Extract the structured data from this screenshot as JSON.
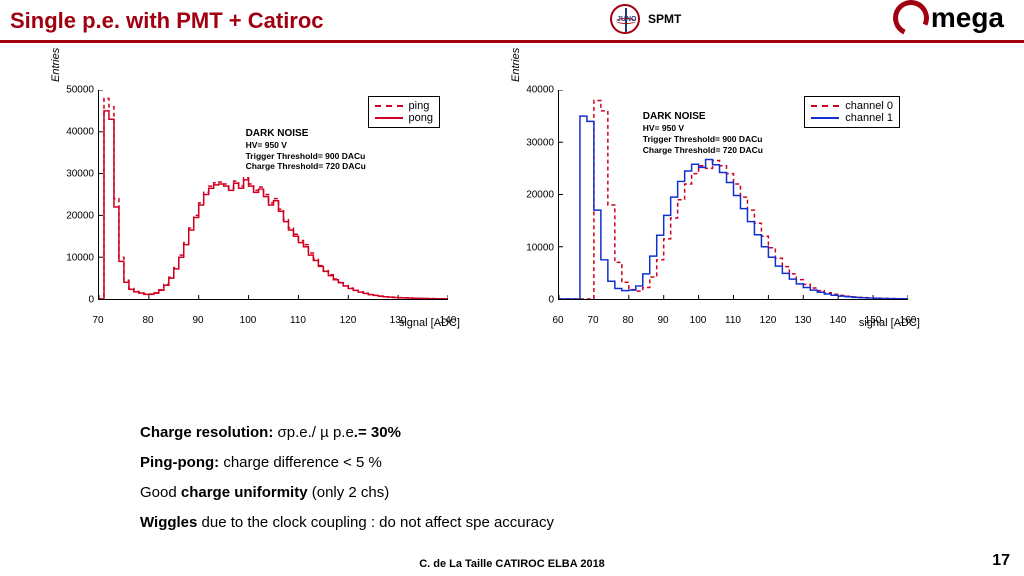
{
  "header": {
    "title": "Single p.e. with PMT + Catiroc",
    "spmt_label": "SPMT",
    "omega_label": "mega",
    "accent_color": "#a00010"
  },
  "chart_left": {
    "type": "histogram-step",
    "y_label": "Entries",
    "x_label": "signal [ADC]",
    "xlim": [
      70,
      140
    ],
    "ylim": [
      0,
      50000
    ],
    "xtick_step": 10,
    "ytick_step": 10000,
    "background_color": "#ffffff",
    "axis_color": "#000000",
    "legend": [
      {
        "label": "ping",
        "color": "#d00020",
        "dash": true
      },
      {
        "label": "pong",
        "color": "#d00020",
        "dash": false
      }
    ],
    "annotation": {
      "title": "DARK NOISE",
      "lines": [
        "HV= 950 V",
        "Trigger Threshold= 900 DACu",
        "Charge Threshold= 720 DACu"
      ],
      "pos_pct": [
        42,
        18
      ]
    },
    "series": [
      {
        "name": "ping",
        "color": "#d00020",
        "dash": true,
        "line_width": 1.5,
        "x": [
          70,
          71,
          72,
          73,
          74,
          75,
          76,
          77,
          78,
          79,
          80,
          81,
          82,
          83,
          84,
          85,
          86,
          87,
          88,
          89,
          90,
          91,
          92,
          93,
          94,
          95,
          96,
          97,
          98,
          99,
          100,
          101,
          102,
          103,
          104,
          105,
          106,
          107,
          108,
          109,
          110,
          111,
          112,
          113,
          114,
          115,
          116,
          117,
          118,
          119,
          120,
          121,
          122,
          123,
          124,
          125,
          126,
          127,
          128,
          129,
          130,
          131,
          132,
          133,
          134,
          135,
          136,
          137,
          138,
          139,
          140
        ],
        "y": [
          0,
          48000,
          46000,
          24000,
          10000,
          4500,
          2500,
          1800,
          1500,
          1200,
          1200,
          1500,
          2200,
          3500,
          5200,
          7500,
          10500,
          13500,
          17000,
          20000,
          23000,
          25500,
          27000,
          27800,
          28000,
          27500,
          26500,
          28200,
          27000,
          29000,
          27500,
          26000,
          26800,
          25000,
          23000,
          24000,
          21500,
          19000,
          17000,
          15500,
          14000,
          13000,
          11000,
          9500,
          8000,
          6800,
          5800,
          4800,
          4000,
          3200,
          2600,
          2100,
          1700,
          1400,
          1100,
          900,
          700,
          550,
          450,
          380,
          320,
          270,
          230,
          190,
          160,
          130,
          100,
          80,
          60,
          40,
          20
        ]
      },
      {
        "name": "pong",
        "color": "#d00020",
        "dash": false,
        "line_width": 1.5,
        "x": [
          70,
          71,
          72,
          73,
          74,
          75,
          76,
          77,
          78,
          79,
          80,
          81,
          82,
          83,
          84,
          85,
          86,
          87,
          88,
          89,
          90,
          91,
          92,
          93,
          94,
          95,
          96,
          97,
          98,
          99,
          100,
          101,
          102,
          103,
          104,
          105,
          106,
          107,
          108,
          109,
          110,
          111,
          112,
          113,
          114,
          115,
          116,
          117,
          118,
          119,
          120,
          121,
          122,
          123,
          124,
          125,
          126,
          127,
          128,
          129,
          130,
          131,
          132,
          133,
          134,
          135,
          136,
          137,
          138,
          139,
          140
        ],
        "y": [
          0,
          45000,
          43000,
          22000,
          9000,
          4000,
          2300,
          1700,
          1400,
          1100,
          1100,
          1400,
          2100,
          3300,
          5000,
          7200,
          10000,
          13000,
          16500,
          19500,
          22500,
          25000,
          26500,
          27300,
          27500,
          27000,
          26000,
          27700,
          26500,
          28500,
          27000,
          25500,
          26300,
          24500,
          22500,
          23500,
          21000,
          18500,
          16500,
          15000,
          13500,
          12500,
          10500,
          9200,
          7800,
          6600,
          5600,
          4600,
          3900,
          3100,
          2500,
          2050,
          1650,
          1350,
          1050,
          870,
          680,
          530,
          440,
          370,
          310,
          260,
          220,
          180,
          150,
          120,
          95,
          75,
          55,
          35,
          18
        ]
      }
    ]
  },
  "chart_right": {
    "type": "histogram-step",
    "y_label": "Entries",
    "x_label": "signal [ADC]",
    "xlim": [
      60,
      160
    ],
    "ylim": [
      0,
      40000
    ],
    "xtick_step": 10,
    "ytick_step": 10000,
    "background_color": "#ffffff",
    "axis_color": "#000000",
    "legend": [
      {
        "label": "channel 0",
        "color": "#d00020",
        "dash": true
      },
      {
        "label": "channel 1",
        "color": "#1030d0",
        "dash": false
      }
    ],
    "annotation": {
      "title": "DARK NOISE",
      "lines": [
        "HV= 950 V",
        "Trigger Threshold= 900 DACu",
        "Charge Threshold= 720 DACu"
      ],
      "pos_pct": [
        24,
        10
      ]
    },
    "series": [
      {
        "name": "channel 0",
        "color": "#d00020",
        "dash": true,
        "line_width": 1.5,
        "x": [
          60,
          62,
          64,
          66,
          68,
          70,
          72,
          74,
          76,
          78,
          80,
          82,
          84,
          86,
          88,
          90,
          92,
          94,
          96,
          98,
          100,
          102,
          104,
          106,
          108,
          110,
          112,
          114,
          116,
          118,
          120,
          122,
          124,
          126,
          128,
          130,
          132,
          134,
          136,
          138,
          140,
          142,
          144,
          146,
          148,
          150,
          152,
          154,
          156,
          158,
          160
        ],
        "y": [
          0,
          0,
          0,
          0,
          0,
          38000,
          36000,
          18000,
          7000,
          3200,
          1800,
          1500,
          2200,
          4200,
          7500,
          11500,
          15500,
          19000,
          22000,
          24000,
          25500,
          25000,
          26500,
          25500,
          24000,
          22000,
          19500,
          17000,
          14500,
          12000,
          9800,
          7800,
          6200,
          4800,
          3700,
          2800,
          2100,
          1600,
          1200,
          900,
          700,
          520,
          400,
          300,
          230,
          170,
          130,
          100,
          70,
          50,
          30
        ]
      },
      {
        "name": "channel 1",
        "color": "#1030d0",
        "dash": false,
        "line_width": 1.5,
        "x": [
          60,
          62,
          64,
          66,
          68,
          70,
          72,
          74,
          76,
          78,
          80,
          82,
          84,
          86,
          88,
          90,
          92,
          94,
          96,
          98,
          100,
          102,
          104,
          106,
          108,
          110,
          112,
          114,
          116,
          118,
          120,
          122,
          124,
          126,
          128,
          130,
          132,
          134,
          136,
          138,
          140,
          142,
          144,
          146,
          148,
          150,
          152,
          154,
          156,
          158,
          160
        ],
        "y": [
          0,
          0,
          0,
          35000,
          34000,
          17000,
          7500,
          3400,
          2000,
          1600,
          1700,
          2500,
          4800,
          8200,
          12200,
          16000,
          19500,
          22500,
          24500,
          25800,
          25200,
          26700,
          25700,
          24200,
          22300,
          19800,
          17300,
          14800,
          12300,
          10000,
          8000,
          6300,
          4900,
          3800,
          2900,
          2200,
          1700,
          1300,
          950,
          720,
          540,
          420,
          320,
          240,
          180,
          140,
          100,
          75,
          55,
          40,
          25
        ]
      }
    ]
  },
  "bullets": {
    "line1_a": "Charge resolution: ",
    "line1_b": "σp.e./ µ p.e",
    "line1_c": ".= 30%",
    "line2_a": "Ping-pong: ",
    "line2_b": "charge difference < 5 %",
    "line3_a": "Good ",
    "line3_b": "charge uniformity",
    "line3_c": " (only 2 chs)",
    "line4_a": "Wiggles ",
    "line4_b": "due to the clock coupling : do not affect spe accuracy"
  },
  "footer": {
    "credit": "C. de La Taille  CATIROC ELBA 2018",
    "page": "17"
  }
}
